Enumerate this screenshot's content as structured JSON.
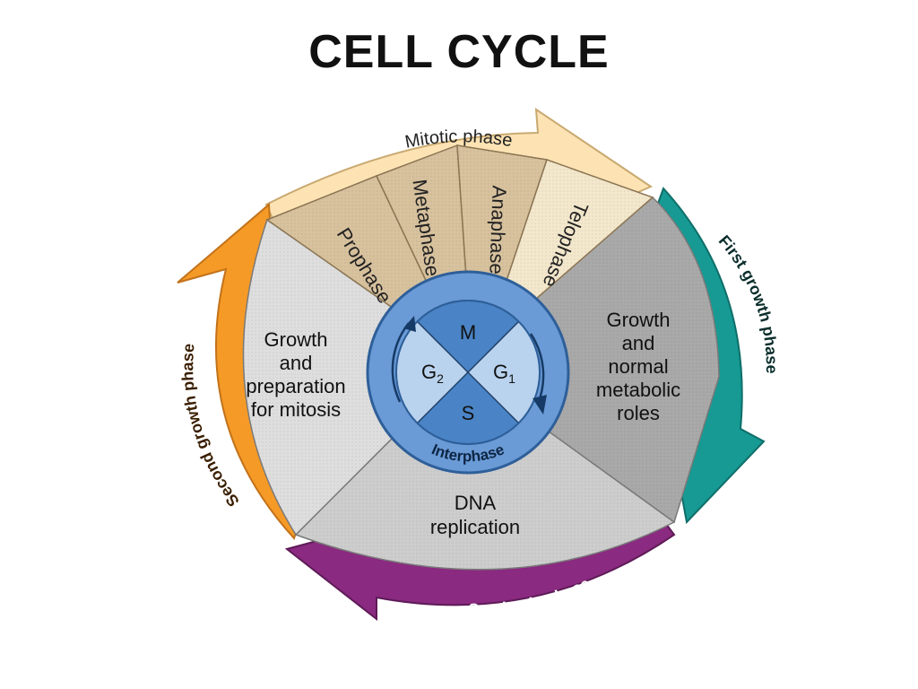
{
  "slide": {
    "title": "CELL CYCLE"
  },
  "diagram": {
    "arcs": {
      "mitotic": "Mitotic phase",
      "first_growth": "First growth phase",
      "synthesis": "Synthesis phase",
      "second_growth": "Second growth phase"
    },
    "mitosis_stages": [
      "Prophase",
      "Metaphase",
      "Anaphase",
      "Telophase"
    ],
    "sectors": {
      "g1": [
        "Growth",
        "and",
        "normal",
        "metabolic",
        "roles"
      ],
      "s": [
        "DNA",
        "replication"
      ],
      "g2": [
        "Growth",
        "and",
        "preparation",
        "for mitosis"
      ]
    },
    "hub": {
      "m": "M",
      "g1_letter": "G",
      "g1_sub": "1",
      "g2_letter": "G",
      "g2_sub": "2",
      "s": "S",
      "ring": "Interphase"
    },
    "colors": {
      "mitotic_arrow": "#fde3b4",
      "first_growth_arrow": "#169a93",
      "synthesis_arrow": "#8a2a80",
      "second_growth_arrow": "#f59a26",
      "mitosis_wedges": "#d8c29e",
      "telophase_wedge": "#f3e7cc",
      "g1_sector": "#a9a9a9",
      "s_sector": "#cdcdcd",
      "g2_sector": "#dedede",
      "hub_ring": "#6a9bd6",
      "hub_dark": "#4a84c6",
      "hub_light": "#b9d2ee"
    }
  }
}
